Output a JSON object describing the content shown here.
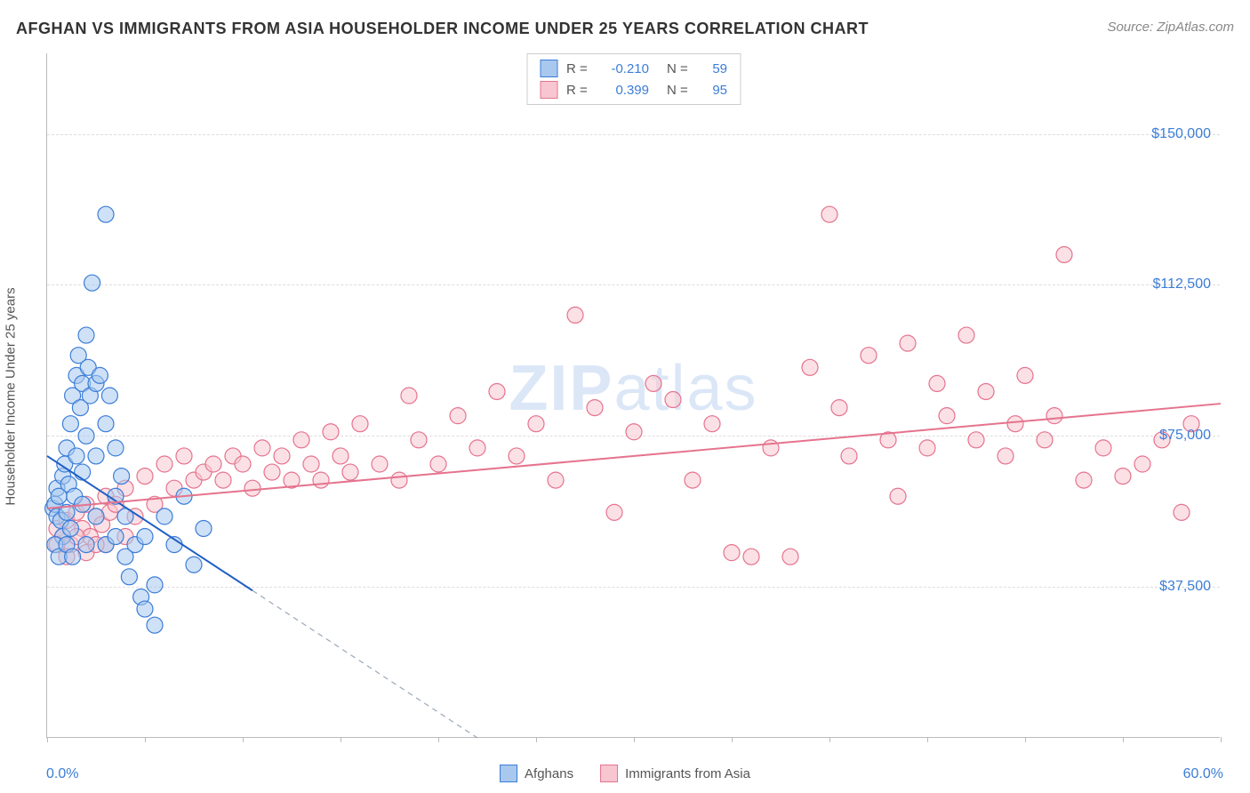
{
  "title": "AFGHAN VS IMMIGRANTS FROM ASIA HOUSEHOLDER INCOME UNDER 25 YEARS CORRELATION CHART",
  "source": "Source: ZipAtlas.com",
  "ylabel": "Householder Income Under 25 years",
  "watermark_bold": "ZIP",
  "watermark_light": "atlas",
  "chart": {
    "type": "scatter",
    "background_color": "#ffffff",
    "grid_color": "#dddddd",
    "axis_color": "#bbbbbb",
    "tick_label_color": "#3b7dd8",
    "label_fontsize": 15,
    "tick_fontsize": 16,
    "title_fontsize": 18,
    "xlim": [
      0,
      60
    ],
    "ylim": [
      0,
      170000
    ],
    "xticks": [
      0,
      5,
      10,
      15,
      20,
      25,
      30,
      35,
      40,
      45,
      50,
      55,
      60
    ],
    "yticks": [
      37500,
      75000,
      112500,
      150000
    ],
    "ytick_labels": [
      "$37,500",
      "$75,000",
      "$112,500",
      "$150,000"
    ],
    "xaxis_min_label": "0.0%",
    "xaxis_max_label": "60.0%",
    "marker_radius": 9,
    "marker_opacity": 0.55,
    "line_width": 2,
    "dashed_pattern": "6,5",
    "series": [
      {
        "name": "Afghans",
        "fill_color": "#a8c8ee",
        "stroke_color": "#3b7dd8",
        "line_color": "#1f5fc4",
        "R": "-0.210",
        "N": "59",
        "trend": {
          "x1": 0,
          "y1": 70000,
          "x2": 22,
          "y2": 0,
          "dash_from_x": 10.5
        },
        "points": [
          [
            0.3,
            57000
          ],
          [
            0.4,
            58000
          ],
          [
            0.5,
            55000
          ],
          [
            0.5,
            62000
          ],
          [
            0.6,
            60000
          ],
          [
            0.7,
            54000
          ],
          [
            0.8,
            65000
          ],
          [
            0.8,
            50000
          ],
          [
            0.9,
            68000
          ],
          [
            1.0,
            72000
          ],
          [
            1.0,
            56000
          ],
          [
            1.1,
            63000
          ],
          [
            1.2,
            78000
          ],
          [
            1.2,
            52000
          ],
          [
            1.3,
            85000
          ],
          [
            1.4,
            60000
          ],
          [
            1.5,
            90000
          ],
          [
            1.5,
            70000
          ],
          [
            1.6,
            95000
          ],
          [
            1.7,
            82000
          ],
          [
            1.8,
            88000
          ],
          [
            1.8,
            66000
          ],
          [
            2.0,
            100000
          ],
          [
            2.0,
            75000
          ],
          [
            2.1,
            92000
          ],
          [
            2.2,
            85000
          ],
          [
            2.3,
            113000
          ],
          [
            2.5,
            88000
          ],
          [
            2.5,
            70000
          ],
          [
            2.7,
            90000
          ],
          [
            3.0,
            130000
          ],
          [
            3.0,
            78000
          ],
          [
            3.2,
            85000
          ],
          [
            3.5,
            72000
          ],
          [
            3.5,
            60000
          ],
          [
            3.8,
            65000
          ],
          [
            4.0,
            45000
          ],
          [
            4.0,
            55000
          ],
          [
            4.2,
            40000
          ],
          [
            4.5,
            48000
          ],
          [
            4.8,
            35000
          ],
          [
            5.0,
            32000
          ],
          [
            5.0,
            50000
          ],
          [
            5.5,
            38000
          ],
          [
            5.5,
            28000
          ],
          [
            6.0,
            55000
          ],
          [
            6.5,
            48000
          ],
          [
            7.0,
            60000
          ],
          [
            7.5,
            43000
          ],
          [
            8.0,
            52000
          ],
          [
            0.4,
            48000
          ],
          [
            0.6,
            45000
          ],
          [
            1.0,
            48000
          ],
          [
            1.3,
            45000
          ],
          [
            2.0,
            48000
          ],
          [
            2.5,
            55000
          ],
          [
            3.0,
            48000
          ],
          [
            3.5,
            50000
          ],
          [
            1.8,
            58000
          ]
        ]
      },
      {
        "name": "Immigrants from Asia",
        "fill_color": "#f7c6d0",
        "stroke_color": "#e5738d",
        "line_color": "#e5738d",
        "R": "0.399",
        "N": "95",
        "trend": {
          "x1": 0,
          "y1": 57000,
          "x2": 60,
          "y2": 83000
        },
        "points": [
          [
            0.5,
            52000
          ],
          [
            0.8,
            50000
          ],
          [
            1.0,
            54000
          ],
          [
            1.2,
            48000
          ],
          [
            1.5,
            56000
          ],
          [
            1.8,
            52000
          ],
          [
            2.0,
            58000
          ],
          [
            2.2,
            50000
          ],
          [
            2.5,
            55000
          ],
          [
            2.8,
            53000
          ],
          [
            3.0,
            60000
          ],
          [
            3.2,
            56000
          ],
          [
            3.5,
            58000
          ],
          [
            4.0,
            62000
          ],
          [
            4.5,
            55000
          ],
          [
            5.0,
            65000
          ],
          [
            5.5,
            58000
          ],
          [
            6.0,
            68000
          ],
          [
            6.5,
            62000
          ],
          [
            7.0,
            70000
          ],
          [
            7.5,
            64000
          ],
          [
            8.0,
            66000
          ],
          [
            8.5,
            68000
          ],
          [
            9.0,
            64000
          ],
          [
            9.5,
            70000
          ],
          [
            10,
            68000
          ],
          [
            10.5,
            62000
          ],
          [
            11,
            72000
          ],
          [
            11.5,
            66000
          ],
          [
            12,
            70000
          ],
          [
            12.5,
            64000
          ],
          [
            13,
            74000
          ],
          [
            13.5,
            68000
          ],
          [
            14,
            64000
          ],
          [
            14.5,
            76000
          ],
          [
            15,
            70000
          ],
          [
            15.5,
            66000
          ],
          [
            16,
            78000
          ],
          [
            17,
            68000
          ],
          [
            18,
            64000
          ],
          [
            18.5,
            85000
          ],
          [
            19,
            74000
          ],
          [
            20,
            68000
          ],
          [
            21,
            80000
          ],
          [
            22,
            72000
          ],
          [
            23,
            86000
          ],
          [
            24,
            70000
          ],
          [
            25,
            78000
          ],
          [
            26,
            64000
          ],
          [
            27,
            105000
          ],
          [
            28,
            82000
          ],
          [
            29,
            56000
          ],
          [
            30,
            76000
          ],
          [
            31,
            88000
          ],
          [
            32,
            84000
          ],
          [
            33,
            64000
          ],
          [
            34,
            78000
          ],
          [
            35,
            46000
          ],
          [
            36,
            45000
          ],
          [
            37,
            72000
          ],
          [
            38,
            45000
          ],
          [
            39,
            92000
          ],
          [
            40,
            130000
          ],
          [
            40.5,
            82000
          ],
          [
            41,
            70000
          ],
          [
            42,
            95000
          ],
          [
            43,
            74000
          ],
          [
            43.5,
            60000
          ],
          [
            44,
            98000
          ],
          [
            45,
            72000
          ],
          [
            45.5,
            88000
          ],
          [
            46,
            80000
          ],
          [
            47,
            100000
          ],
          [
            47.5,
            74000
          ],
          [
            48,
            86000
          ],
          [
            49,
            70000
          ],
          [
            49.5,
            78000
          ],
          [
            50,
            90000
          ],
          [
            51,
            74000
          ],
          [
            51.5,
            80000
          ],
          [
            52,
            120000
          ],
          [
            53,
            64000
          ],
          [
            54,
            72000
          ],
          [
            55,
            65000
          ],
          [
            56,
            68000
          ],
          [
            57,
            74000
          ],
          [
            58,
            56000
          ],
          [
            58.5,
            78000
          ],
          [
            1.0,
            45000
          ],
          [
            2.0,
            46000
          ],
          [
            3.0,
            48000
          ],
          [
            4.0,
            50000
          ],
          [
            0.5,
            48000
          ],
          [
            1.5,
            50000
          ],
          [
            2.5,
            48000
          ]
        ]
      }
    ]
  },
  "legend": {
    "items": [
      {
        "label": "Afghans",
        "fill": "#a8c8ee",
        "stroke": "#3b7dd8"
      },
      {
        "label": "Immigrants from Asia",
        "fill": "#f7c6d0",
        "stroke": "#e5738d"
      }
    ]
  }
}
